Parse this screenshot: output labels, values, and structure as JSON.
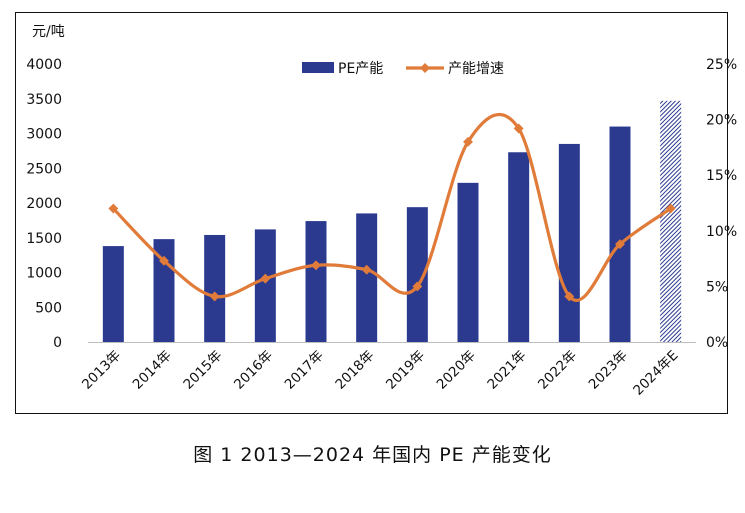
{
  "caption": "图 1  2013—2024 年国内 PE 产能变化",
  "chart_data": {
    "type": "bar",
    "categories": [
      "2013年",
      "2014年",
      "2015年",
      "2016年",
      "2017年",
      "2018年",
      "2019年",
      "2020年",
      "2021年",
      "2022年",
      "2023年",
      "2024年E"
    ],
    "series": [
      {
        "name": "PE产能",
        "type": "bar",
        "axis": "left",
        "color": "#2B3A8F",
        "values": [
          1380,
          1480,
          1540,
          1620,
          1740,
          1850,
          1940,
          2290,
          2730,
          2850,
          3100,
          3470
        ],
        "hatched_last": true
      },
      {
        "name": "产能增速",
        "type": "line",
        "axis": "right",
        "color": "#E07B39",
        "values": [
          12.0,
          7.3,
          4.1,
          5.7,
          6.9,
          6.5,
          5.0,
          18.0,
          19.2,
          4.1,
          8.8,
          12.0
        ]
      }
    ],
    "ylabel": "元/吨",
    "ylim": [
      0,
      4000
    ],
    "yticks": [
      0,
      500,
      1000,
      1500,
      2000,
      2500,
      3000,
      3500,
      4000
    ],
    "y2lim": [
      0,
      25
    ],
    "y2ticks": [
      "0%",
      "5%",
      "10%",
      "15%",
      "20%",
      "25%"
    ],
    "grid": false,
    "legend_position": "top-center"
  }
}
